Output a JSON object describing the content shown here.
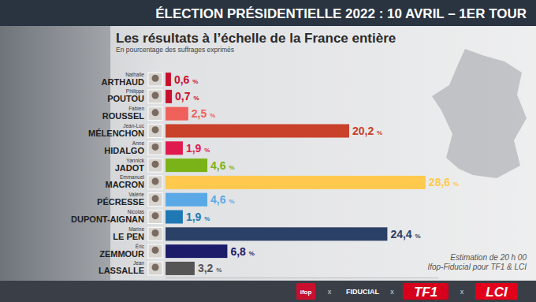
{
  "chart_data": {
    "type": "bar",
    "orientation": "horizontal",
    "title": "ÉLECTION PRÉSIDENTIELLE 2022 : 10 AVRIL – 1ER TOUR",
    "subtitle": "Les résultats à l’échelle de la France entière",
    "caption": "En pourcentage des suffrages exprimés",
    "first_names": [
      "Nathalie",
      "Philippe",
      "Fabien",
      "Jean-Luc",
      "Anne",
      "Yannick",
      "Emmanuel",
      "Valérie",
      "Nicolas",
      "Marine",
      "Éric",
      "Jean"
    ],
    "categories": [
      "ARTHAUD",
      "POUTOU",
      "ROUSSEL",
      "MÉLENCHON",
      "HIDALGO",
      "JADOT",
      "MACRON",
      "PÉCRESSE",
      "DUPONT-AIGNAN",
      "LE PEN",
      "ZEMMOUR",
      "LASSALLE"
    ],
    "values": [
      0.6,
      0.7,
      2.5,
      20.2,
      1.9,
      4.6,
      28.6,
      4.6,
      1.9,
      24.4,
      6.8,
      3.2
    ],
    "value_labels": [
      "0,6 %",
      "0,7 %",
      "2,5 %",
      "20,2 %",
      "1,9 %",
      "4,6 %",
      "28,6 %",
      "4,6 %",
      "1,9 %",
      "24,4 %",
      "6,8 %",
      "3,2 %"
    ],
    "colors": [
      "#c8102e",
      "#c8102e",
      "#f0605a",
      "#c9402b",
      "#e01a4f",
      "#7ab317",
      "#ffc94d",
      "#5aa9e6",
      "#1f78b4",
      "#2b4066",
      "#1c1c6b",
      "#555555"
    ],
    "xlim": [
      0,
      30
    ],
    "xticks": [],
    "tick_labels": false,
    "grid": false,
    "data_labels": true,
    "notes": [
      "Estimation de 20 h 00",
      "Ifop-Fiducial pour TF1 & LCI"
    ],
    "logos": [
      "ifop",
      "FIDUCIAL",
      "TF1",
      "LCI"
    ],
    "separator": "x"
  }
}
